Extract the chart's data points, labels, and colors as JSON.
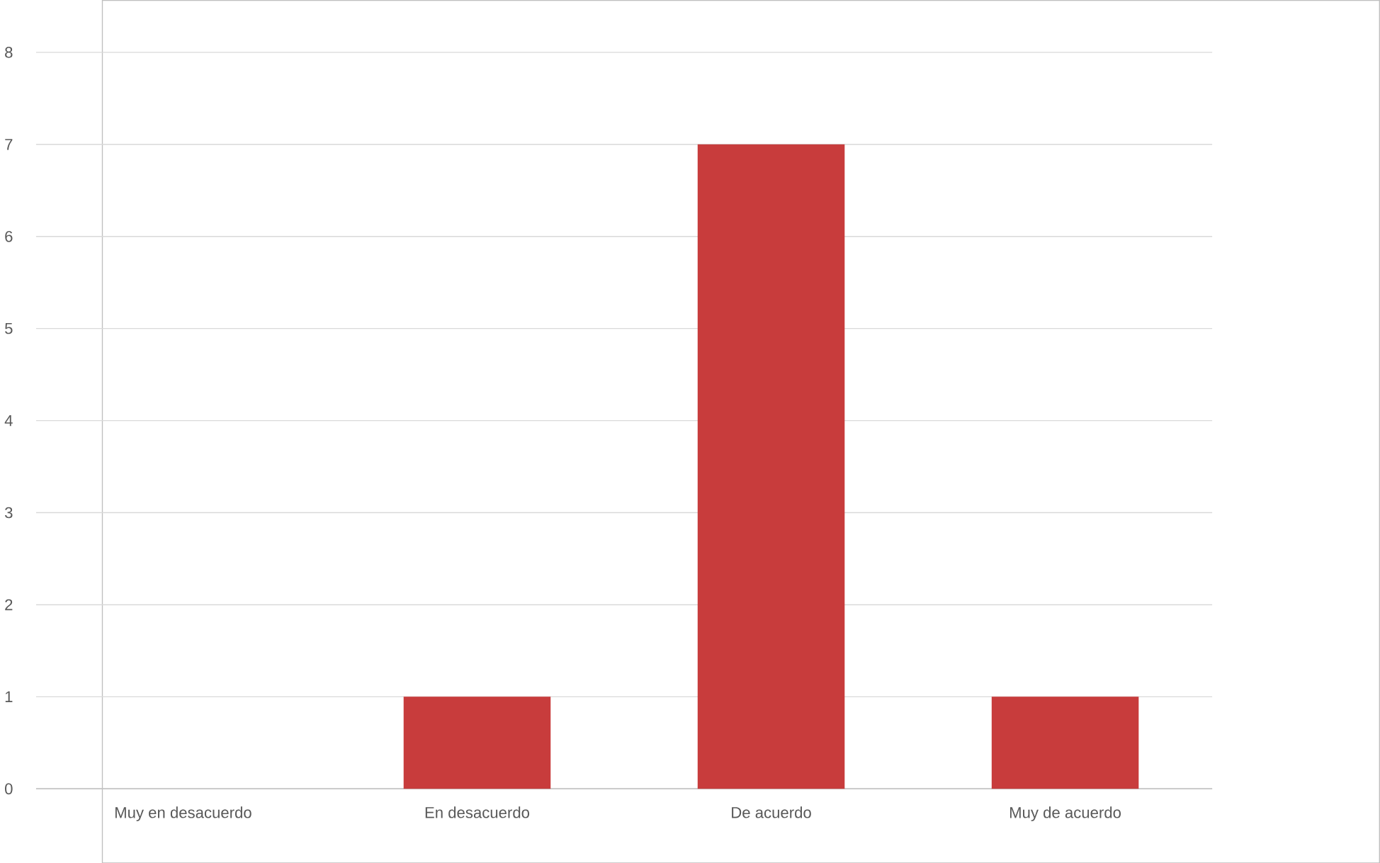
{
  "chart_data": {
    "type": "bar",
    "categories": [
      "Muy en desacuerdo",
      "En desacuerdo",
      "De acuerdo",
      "Muy de acuerdo"
    ],
    "values": [
      0,
      1,
      7,
      1
    ],
    "color": "#c83c3c",
    "ylim": [
      0,
      8
    ],
    "yticks": [
      0,
      1,
      2,
      3,
      4,
      5,
      6,
      7,
      8
    ],
    "grid": "y"
  }
}
